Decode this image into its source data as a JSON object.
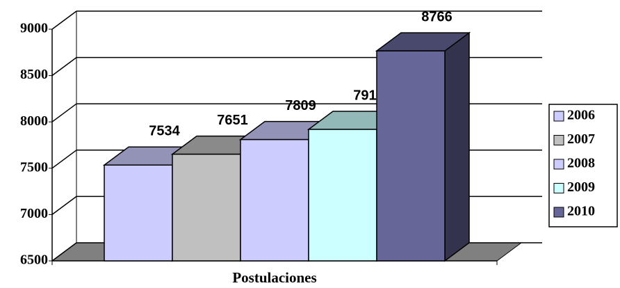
{
  "chart_data": {
    "type": "bar3d",
    "categories": [
      "Postulaciones"
    ],
    "series": [
      {
        "name": "2006",
        "color": "#ccccff",
        "values": [
          7534
        ]
      },
      {
        "name": "2007",
        "color": "#c0c0c0",
        "values": [
          7651
        ]
      },
      {
        "name": "2008",
        "color": "#ccccff",
        "values": [
          7809
        ]
      },
      {
        "name": "2009",
        "color": "#ccffff",
        "values": [
          7919
        ]
      },
      {
        "name": "2010",
        "color": "#666699",
        "values": [
          8766
        ]
      }
    ],
    "ylim": [
      6500,
      9000
    ],
    "yticks": [
      6500,
      7000,
      7500,
      8000,
      8500,
      9000
    ],
    "grid": true,
    "legend": "right"
  }
}
